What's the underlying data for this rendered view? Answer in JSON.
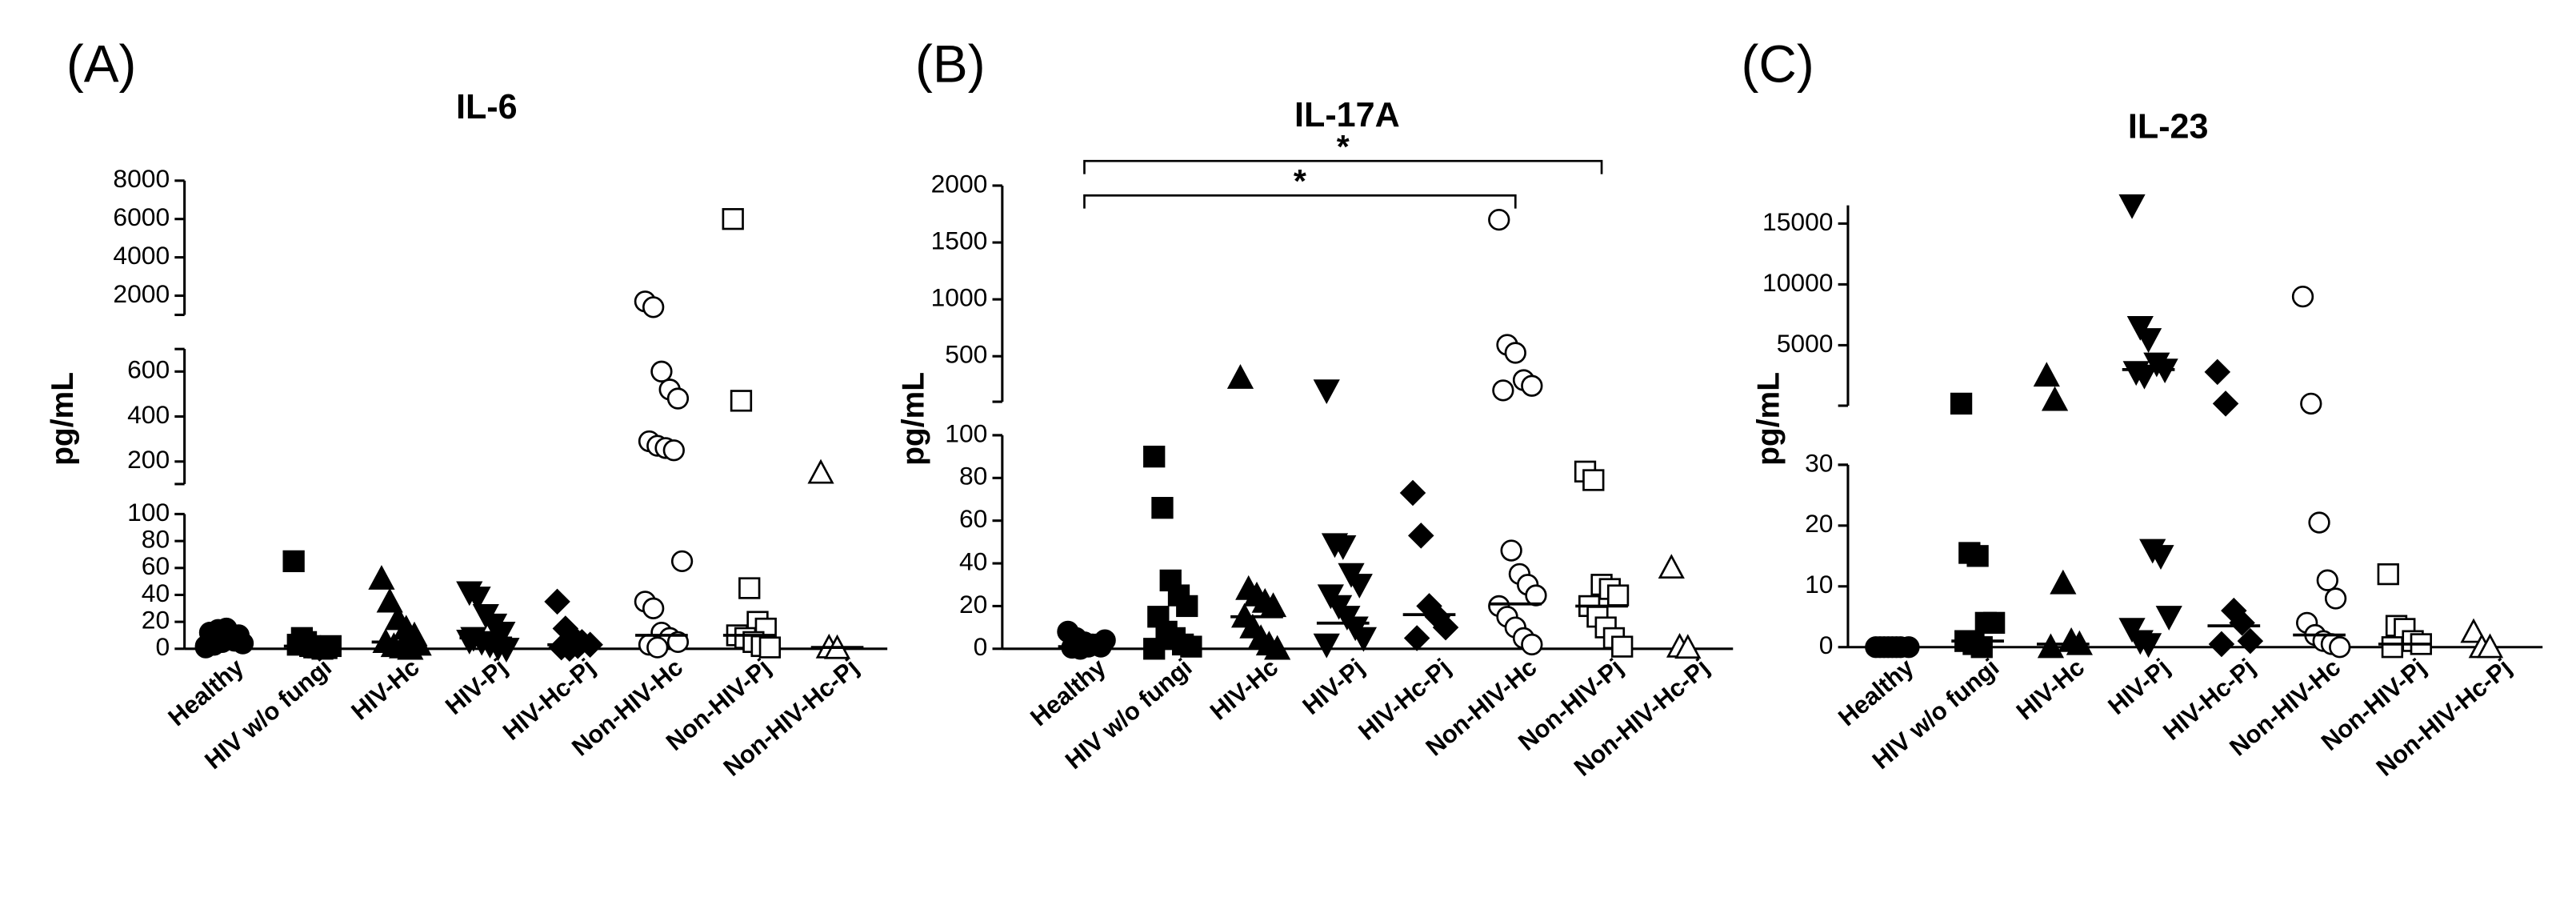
{
  "chart_data": [
    {
      "type": "dot",
      "panel_label": "(A)",
      "title": "IL-6",
      "ylabel": "pg/mL",
      "categories": [
        "Healthy",
        "HIV w/o fungi",
        "HIV-Hc",
        "HIV-Pj",
        "HIV-Hc-Pj",
        "Non-HIV-Hc",
        "Non-HIV-Pj",
        "Non-HIV-Hc-Pj"
      ],
      "markers": [
        "filled-circle",
        "filled-square",
        "filled-triangle-up",
        "filled-triangle-down",
        "filled-diamond",
        "open-circle",
        "open-square",
        "open-triangle-up"
      ],
      "values": [
        [
          2,
          3,
          5,
          8,
          10,
          12,
          14,
          15,
          6,
          4,
          1,
          3
        ],
        [
          65,
          8,
          2,
          1,
          0.5,
          3,
          5,
          1,
          0,
          2
        ],
        [
          52,
          35,
          22,
          15,
          10,
          5,
          2,
          1,
          0,
          3
        ],
        [
          42,
          38,
          25,
          18,
          12,
          8,
          5,
          3,
          1,
          0,
          6
        ],
        [
          35,
          15,
          8,
          5,
          3,
          1,
          0,
          2
        ],
        [
          1700,
          1400,
          600,
          520,
          480,
          290,
          270,
          260,
          250,
          65,
          35,
          30,
          12,
          8,
          5,
          3,
          1
        ],
        [
          6000,
          470,
          45,
          20,
          15,
          10,
          8,
          5,
          2,
          1
        ],
        [
          150,
          1,
          0.5
        ]
      ],
      "medians": [
        3,
        2,
        5,
        8,
        3,
        10,
        10,
        1
      ],
      "y_segments": [
        {
          "ylim": [
            0,
            100
          ],
          "yticks": [
            0,
            20,
            40,
            60,
            80,
            100
          ]
        },
        {
          "ylim": [
            100,
            700
          ],
          "yticks": [
            200,
            400,
            600
          ]
        },
        {
          "ylim": [
            1000,
            8000
          ],
          "yticks": [
            2000,
            4000,
            6000,
            8000
          ]
        }
      ]
    },
    {
      "type": "dot",
      "panel_label": "(B)",
      "title": "IL-17A",
      "ylabel": "pg/mL",
      "categories": [
        "Healthy",
        "HIV w/o fungi",
        "HIV-Hc",
        "HIV-Pj",
        "HIV-Hc-Pj",
        "Non-HIV-Hc",
        "Non-HIV-Pj",
        "Non-HIV-Hc-Pj"
      ],
      "markers": [
        "filled-circle",
        "filled-square",
        "filled-triangle-up",
        "filled-triangle-down",
        "filled-diamond",
        "open-circle",
        "open-square",
        "open-triangle-up"
      ],
      "values": [
        [
          8,
          5,
          3,
          2,
          1,
          0.5,
          0,
          1,
          2,
          4
        ],
        [
          90,
          66,
          32,
          25,
          20,
          15,
          8,
          5,
          2,
          1,
          0
        ],
        [
          310,
          28,
          25,
          22,
          20,
          15,
          10,
          5,
          2,
          0
        ],
        [
          200,
          49,
          48,
          35,
          30,
          25,
          20,
          15,
          10,
          5,
          2
        ],
        [
          73,
          53,
          20,
          15,
          10,
          5
        ],
        [
          1700,
          600,
          530,
          290,
          240,
          200,
          46,
          35,
          30,
          25,
          20,
          15,
          10,
          5,
          2
        ],
        [
          83,
          79,
          30,
          28,
          25,
          20,
          15,
          10,
          5,
          1
        ],
        [
          38,
          1,
          0.5
        ]
      ],
      "medians": [
        1,
        3,
        15,
        12,
        16,
        21,
        20,
        null
      ],
      "y_segments": [
        {
          "ylim": [
            0,
            100
          ],
          "yticks": [
            0,
            20,
            40,
            60,
            80,
            100
          ]
        },
        {
          "ylim": [
            100,
            2000
          ],
          "yticks": [
            500,
            1000,
            1500,
            2000
          ]
        }
      ],
      "brackets": [
        {
          "from": 0,
          "to": 6,
          "label": "*"
        },
        {
          "from": 0,
          "to": 5,
          "label": "*"
        }
      ]
    },
    {
      "type": "dot",
      "panel_label": "(C)",
      "title": "IL-23",
      "ylabel": "pg/mL",
      "categories": [
        "Healthy",
        "HIV w/o fungi",
        "HIV-Hc",
        "HIV-Pj",
        "HIV-Hc-Pj",
        "Non-HIV-Hc",
        "Non-HIV-Pj",
        "Non-HIV-Hc-Pj"
      ],
      "markers": [
        "filled-circle",
        "filled-square",
        "filled-triangle-up",
        "filled-triangle-down",
        "filled-diamond",
        "open-circle",
        "open-square",
        "open-triangle-up"
      ],
      "values": [
        [
          0,
          0,
          0,
          0,
          0,
          0,
          0,
          0
        ],
        [
          200,
          15.5,
          15,
          4,
          4,
          1,
          0.5,
          0
        ],
        [
          2500,
          500,
          10.5,
          1,
          0.5,
          0
        ],
        [
          16500,
          6500,
          5500,
          3500,
          3000,
          2800,
          2500,
          16,
          15,
          5,
          3,
          1,
          0.5
        ],
        [
          2800,
          200,
          6,
          4,
          1,
          0.5
        ],
        [
          9000,
          200,
          20.5,
          11,
          8,
          4,
          2,
          1,
          0.5,
          0
        ],
        [
          12,
          3.5,
          3,
          1,
          0.5,
          0
        ],
        [
          2.5,
          0,
          0
        ]
      ],
      "medians": [
        0,
        1,
        0.5,
        3000,
        3.5,
        2,
        0.5,
        null
      ],
      "y_segments": [
        {
          "ylim": [
            0,
            30
          ],
          "yticks": [
            0,
            10,
            20,
            30
          ]
        },
        {
          "ylim": [
            30,
            16500
          ],
          "yticks": [
            5000,
            10000,
            15000
          ]
        }
      ]
    }
  ]
}
